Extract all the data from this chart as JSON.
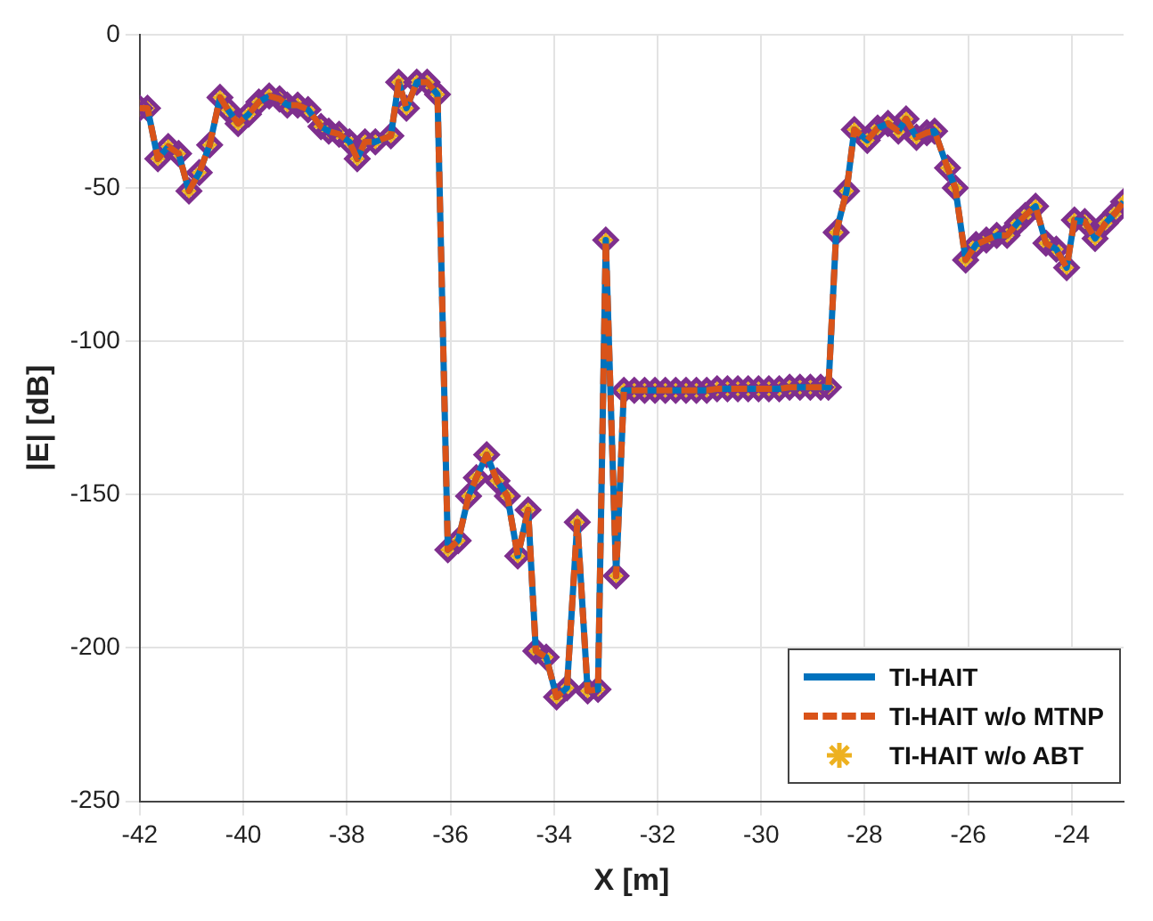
{
  "chart_data": {
    "type": "line",
    "xlabel": "X [m]",
    "ylabel": "|E| [dB]",
    "x": [
      -42.0,
      -41.85,
      -41.65,
      -41.45,
      -41.25,
      -41.05,
      -40.85,
      -40.65,
      -40.45,
      -40.3,
      -40.1,
      -39.9,
      -39.7,
      -39.5,
      -39.3,
      -39.15,
      -38.95,
      -38.75,
      -38.5,
      -38.35,
      -38.15,
      -37.95,
      -37.8,
      -37.65,
      -37.45,
      -37.15,
      -37.0,
      -36.85,
      -36.65,
      -36.45,
      -36.25,
      -36.05,
      -35.85,
      -35.65,
      -35.5,
      -35.3,
      -35.1,
      -34.9,
      -34.7,
      -34.5,
      -34.35,
      -34.15,
      -33.95,
      -33.75,
      -33.55,
      -33.35,
      -33.15,
      -33.0,
      -32.8,
      -32.65,
      -32.45,
      -32.25,
      -32.05,
      -31.85,
      -31.65,
      -31.45,
      -31.25,
      -31.05,
      -30.85,
      -30.65,
      -30.45,
      -30.25,
      -30.05,
      -29.85,
      -29.65,
      -29.45,
      -29.25,
      -29.05,
      -28.85,
      -28.7,
      -28.55,
      -28.35,
      -28.2,
      -27.95,
      -27.75,
      -27.55,
      -27.35,
      -27.2,
      -27.0,
      -26.8,
      -26.65,
      -26.4,
      -26.25,
      -26.05,
      -25.85,
      -25.65,
      -25.45,
      -25.25,
      -25.05,
      -24.9,
      -24.7,
      -24.5,
      -24.3,
      -24.1,
      -23.95,
      -23.75,
      -23.55,
      -23.35,
      -23.15,
      -23.0
    ],
    "series": [
      {
        "name": "TI-HAIT",
        "type": "line",
        "line_style": "solid",
        "marker": "none",
        "color": "#0072bd",
        "values": [
          -24,
          -24,
          -40.5,
          -36.5,
          -38.8,
          -51,
          -45,
          -36,
          -20.5,
          -24.5,
          -29,
          -26,
          -22,
          -20,
          -21,
          -23,
          -23,
          -24.5,
          -30,
          -31.5,
          -32.5,
          -35,
          -40.5,
          -35,
          -35,
          -33,
          -15.5,
          -24,
          -15.5,
          -15.5,
          -19.5,
          -168,
          -165,
          -150.5,
          -144.5,
          -137,
          -145.5,
          -150.5,
          -170,
          -155,
          -201,
          -203,
          -216,
          -213,
          -159,
          -214,
          -213.5,
          -67,
          -176.5,
          -116,
          -116,
          -116,
          -116,
          -116,
          -116,
          -116,
          -116,
          -116,
          -115.5,
          -115.5,
          -115.5,
          -115.5,
          -115.5,
          -115.5,
          -115.5,
          -115,
          -115,
          -115,
          -115,
          -115,
          -64.5,
          -51,
          -31,
          -34.5,
          -30.5,
          -29,
          -31.5,
          -27.5,
          -33.5,
          -32,
          -31.5,
          -43.5,
          -50,
          -73.5,
          -68.5,
          -67,
          -65.5,
          -65.5,
          -61.5,
          -59,
          -56,
          -68,
          -70,
          -76,
          -60.5,
          -61,
          -66.5,
          -61.5,
          -58,
          -54.5
        ]
      },
      {
        "name": "TI-HAIT w/o MTNP",
        "type": "line",
        "line_style": "dashed",
        "marker": "none",
        "color": "#d95319",
        "values": [
          -24,
          -24,
          -40.5,
          -36.5,
          -38.8,
          -51,
          -45,
          -36,
          -20.5,
          -24.5,
          -29,
          -26,
          -22,
          -20,
          -21,
          -23,
          -23,
          -24.5,
          -30,
          -31.5,
          -32.5,
          -35,
          -40.5,
          -35,
          -35,
          -33,
          -15.5,
          -24,
          -15.5,
          -15.5,
          -19.5,
          -168,
          -165,
          -150.5,
          -144.5,
          -137,
          -145.5,
          -150.5,
          -170,
          -155,
          -201,
          -203,
          -216,
          -213,
          -159,
          -214,
          -213.5,
          -67,
          -176.5,
          -116,
          -116,
          -116,
          -116,
          -116,
          -116,
          -116,
          -116,
          -116,
          -115.5,
          -115.5,
          -115.5,
          -115.5,
          -115.5,
          -115.5,
          -115.5,
          -115,
          -115,
          -115,
          -115,
          -115,
          -64.5,
          -51,
          -31,
          -34.5,
          -30.5,
          -29,
          -31.5,
          -27.5,
          -33.5,
          -32,
          -31.5,
          -43.5,
          -50,
          -73.5,
          -68.5,
          -67,
          -65.5,
          -65.5,
          -61.5,
          -59,
          -56,
          -68,
          -70,
          -76,
          -60.5,
          -61,
          -66.5,
          -61.5,
          -58,
          -54.5
        ]
      },
      {
        "name": "TI-HAIT w/o ABT",
        "type": "scatter",
        "marker": "cross",
        "color": "#edb120",
        "values": [
          -24,
          -24,
          -40.5,
          -36.5,
          -38.8,
          -51,
          -45,
          -36,
          -20.5,
          -24.5,
          -29,
          -26,
          -22,
          -20,
          -21,
          -23,
          -23,
          -24.5,
          -30,
          -31.5,
          -32.5,
          -35,
          -40.5,
          -35,
          -35,
          -33,
          -15.5,
          -24,
          -15.5,
          -15.5,
          -19.5,
          -168,
          -165,
          -150.5,
          -144.5,
          -137,
          -145.5,
          -150.5,
          -170,
          -155,
          -201,
          -203,
          -216,
          -213,
          -159,
          -214,
          -213.5,
          -67,
          -176.5,
          -116,
          -116,
          -116,
          -116,
          -116,
          -116,
          -116,
          -116,
          -116,
          -115.5,
          -115.5,
          -115.5,
          -115.5,
          -115.5,
          -115.5,
          -115.5,
          -115,
          -115,
          -115,
          -115,
          -115,
          -64.5,
          -51,
          -31,
          -34.5,
          -30.5,
          -29,
          -31.5,
          -27.5,
          -33.5,
          -32,
          -31.5,
          -43.5,
          -50,
          -73.5,
          -68.5,
          -67,
          -65.5,
          -65.5,
          -61.5,
          -59,
          -56,
          -68,
          -70,
          -76,
          -60.5,
          -61,
          -66.5,
          -61.5,
          -58,
          -54.5
        ]
      },
      {
        "type": "scatter",
        "marker": "diamond",
        "color": "#7e2f8e",
        "values": [
          -24,
          -24,
          -40.5,
          -36.5,
          -38.8,
          -51,
          -45,
          -36,
          -20.5,
          -24.5,
          -29,
          -26,
          -22,
          -20,
          -21,
          -23,
          -23,
          -24.5,
          -30,
          -31.5,
          -32.5,
          -35,
          -40.5,
          -35,
          -35,
          -33,
          -15.5,
          -24,
          -15.5,
          -15.5,
          -19.5,
          -168,
          -165,
          -150.5,
          -144.5,
          -137,
          -145.5,
          -150.5,
          -170,
          -155,
          -201,
          -203,
          -216,
          -213,
          -159,
          -214,
          -213.5,
          -67,
          -176.5,
          -116,
          -116,
          -116,
          -116,
          -116,
          -116,
          -116,
          -116,
          -116,
          -115.5,
          -115.5,
          -115.5,
          -115.5,
          -115.5,
          -115.5,
          -115.5,
          -115,
          -115,
          -115,
          -115,
          -115,
          -64.5,
          -51,
          -31,
          -34.5,
          -30.5,
          -29,
          -31.5,
          -27.5,
          -33.5,
          -32,
          -31.5,
          -43.5,
          -50,
          -73.5,
          -68.5,
          -67,
          -65.5,
          -65.5,
          -61.5,
          -59,
          -56,
          -68,
          -70,
          -76,
          -60.5,
          -61,
          -66.5,
          -61.5,
          -58,
          -54.5
        ]
      }
    ],
    "xlim": [
      -42,
      -23
    ],
    "xticks": [
      -42,
      -40,
      -38,
      -36,
      -34,
      -32,
      -30,
      -28,
      -26,
      -24
    ],
    "ylim": [
      -250,
      0
    ],
    "yticks": [
      -250,
      -200,
      -150,
      -100,
      -50,
      0
    ],
    "grid": true,
    "legend": "bottom right"
  }
}
